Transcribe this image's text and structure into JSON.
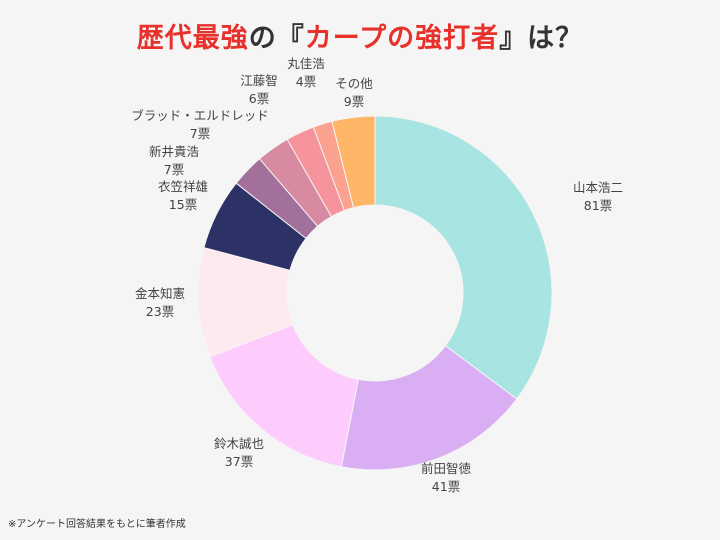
{
  "title_parts": {
    "p1": "歴代最強",
    "p2": "の『",
    "p3": "カープの強打者",
    "p4": "』は？"
  },
  "footnote": "※アンケート回答結果をもとに筆者作成",
  "chart_data": {
    "type": "donut",
    "title": "歴代最強の『カープの強打者』は？",
    "unit": "票",
    "slices": [
      {
        "name": "山本浩二",
        "value": 81,
        "label": "81票",
        "color": "#a8e4e1"
      },
      {
        "name": "前田智徳",
        "value": 41,
        "label": "41票",
        "color": "#d9aef3"
      },
      {
        "name": "鈴木誠也",
        "value": 37,
        "label": "37票",
        "color": "#fdccfd"
      },
      {
        "name": "金本知憲",
        "value": 23,
        "label": "23票",
        "color": "#fdeaee"
      },
      {
        "name": "衣笠祥雄",
        "value": 15,
        "label": "15票",
        "color": "#2d3266"
      },
      {
        "name": "新井貴浩",
        "value": 7,
        "label": "7票",
        "color": "#a36f9b"
      },
      {
        "name": "ブラッド・エルドレッド",
        "value": 7,
        "label": "7票",
        "color": "#d88aa0"
      },
      {
        "name": "江藤智",
        "value": 6,
        "label": "6票",
        "color": "#f5949c"
      },
      {
        "name": "丸佳浩",
        "value": 4,
        "label": "4票",
        "color": "#fba28e"
      },
      {
        "name": "その他",
        "value": 9,
        "label": "9票",
        "color": "#ffb566"
      }
    ]
  }
}
